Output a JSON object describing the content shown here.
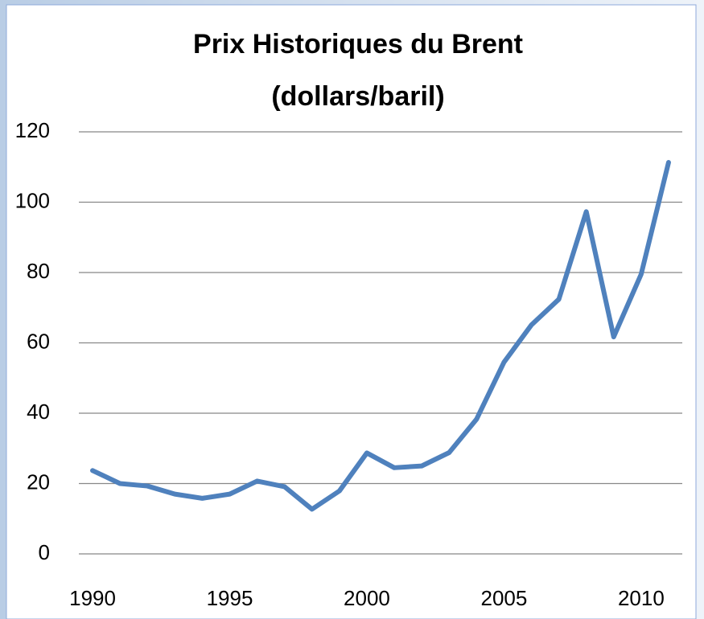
{
  "chart_data": {
    "type": "line",
    "title": "Prix Historiques du Brent",
    "subtitle": "(dollars/baril)",
    "x": [
      1990,
      1991,
      1992,
      1993,
      1994,
      1995,
      1996,
      1997,
      1998,
      1999,
      2000,
      2001,
      2002,
      2003,
      2004,
      2005,
      2006,
      2007,
      2008,
      2009,
      2010,
      2011
    ],
    "series": [
      {
        "name": "Brent",
        "color": "#4f81bd",
        "values": [
          23.7,
          20.0,
          19.3,
          17.0,
          15.8,
          17.0,
          20.7,
          19.1,
          12.7,
          17.9,
          28.7,
          24.5,
          25.0,
          28.8,
          38.3,
          54.5,
          65.1,
          72.4,
          97.3,
          61.7,
          79.5,
          111.3
        ]
      }
    ],
    "xlim": [
      1989.5,
      2011.5
    ],
    "xticks": [
      1990,
      1995,
      2000,
      2005,
      2010
    ],
    "ylim": [
      0,
      120
    ],
    "yticks": [
      0,
      20,
      40,
      60,
      80,
      100,
      120
    ],
    "grid": true
  }
}
